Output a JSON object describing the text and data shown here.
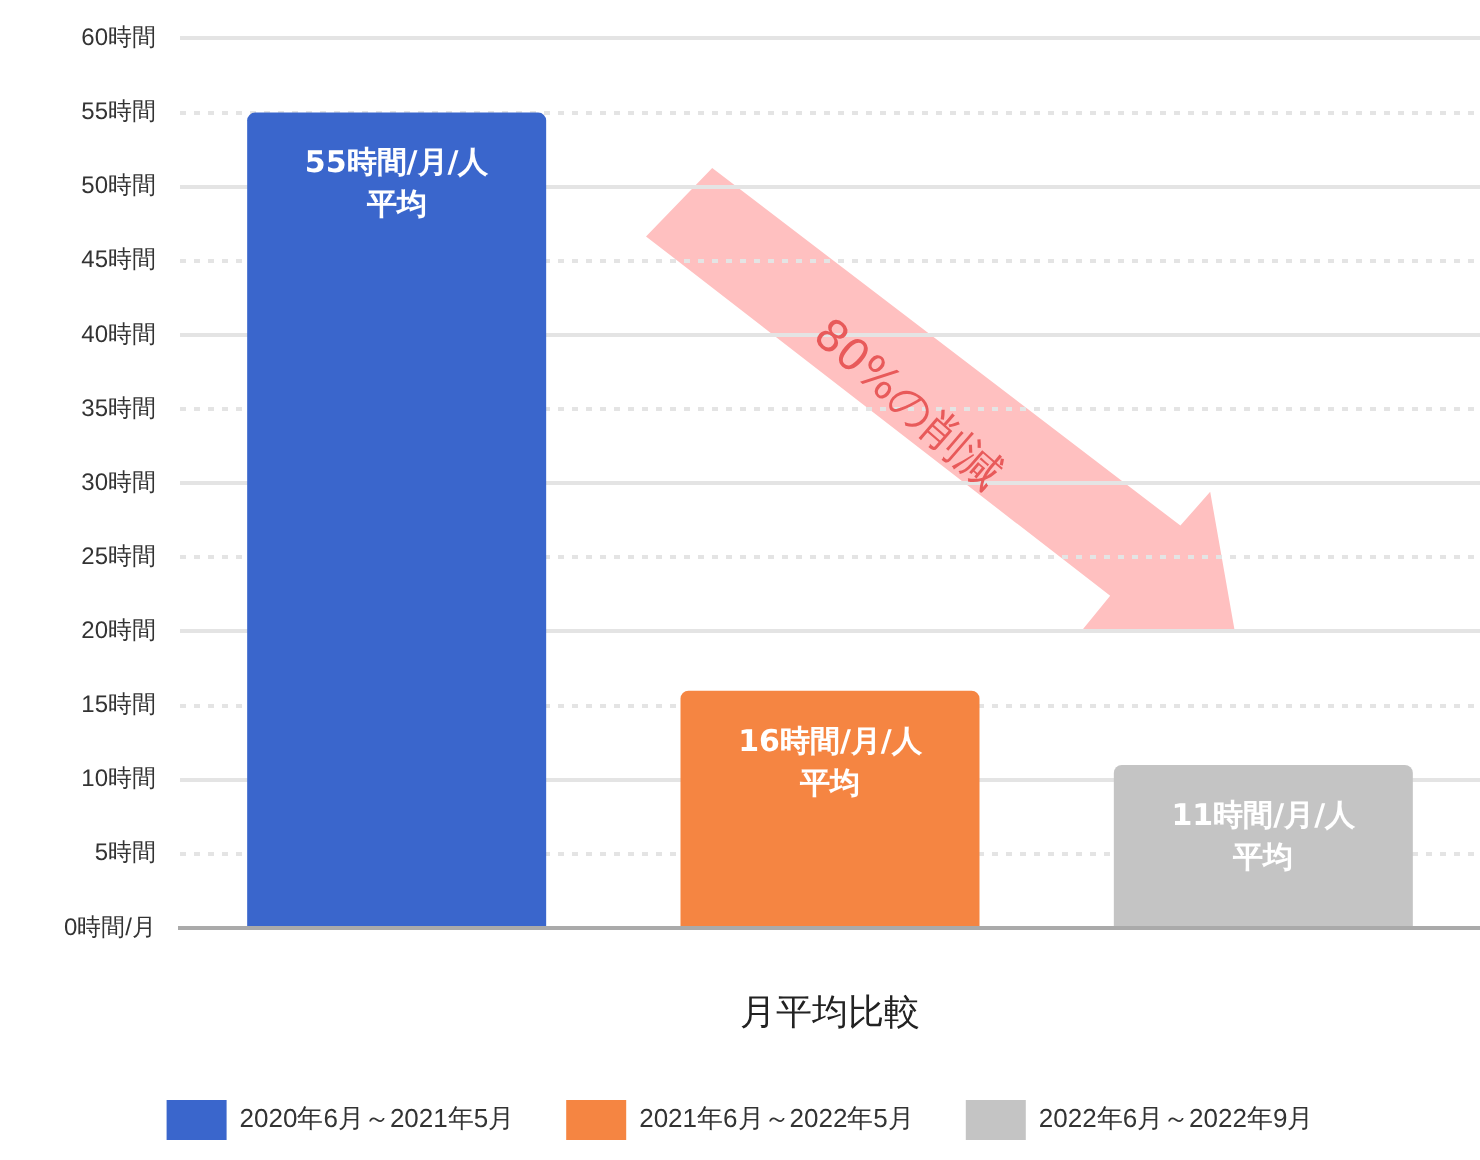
{
  "chart_data": {
    "type": "bar",
    "xlabel": "月平均比較",
    "categories": [
      null,
      null,
      null
    ],
    "series": [
      {
        "name": "2020年6月～2021年5月",
        "color": "#3a66cc",
        "values": [
          55,
          null,
          null
        ],
        "value_labels": [
          "55時間/月/人平均",
          null,
          null
        ]
      },
      {
        "name": "2021年6月～2022年5月",
        "color": "#f58542",
        "values": [
          null,
          16,
          null
        ],
        "value_labels": [
          null,
          "16時間/月/人平均",
          null
        ]
      },
      {
        "name": "2022年6月～2022年9月",
        "color": "#c4c4c4",
        "values": [
          null,
          null,
          11
        ],
        "value_labels": [
          null,
          null,
          "11時間/月/人平均"
        ]
      }
    ],
    "ylim": [
      0,
      60
    ],
    "yticks": [
      {
        "value": 0,
        "label": "0時間/月"
      },
      {
        "value": 5,
        "label": "5時間"
      },
      {
        "value": 10,
        "label": "10時間"
      },
      {
        "value": 15,
        "label": "15時間"
      },
      {
        "value": 20,
        "label": "20時間"
      },
      {
        "value": 25,
        "label": "25時間"
      },
      {
        "value": 30,
        "label": "30時間"
      },
      {
        "value": 35,
        "label": "35時間"
      },
      {
        "value": 40,
        "label": "40時間"
      },
      {
        "value": 45,
        "label": "45時間"
      },
      {
        "value": 50,
        "label": "50時間"
      },
      {
        "value": 55,
        "label": "55時間"
      },
      {
        "value": 60,
        "label": "60時間"
      }
    ],
    "annotations": [
      "80%の削減"
    ],
    "grid": "y",
    "legend": "bottom"
  }
}
